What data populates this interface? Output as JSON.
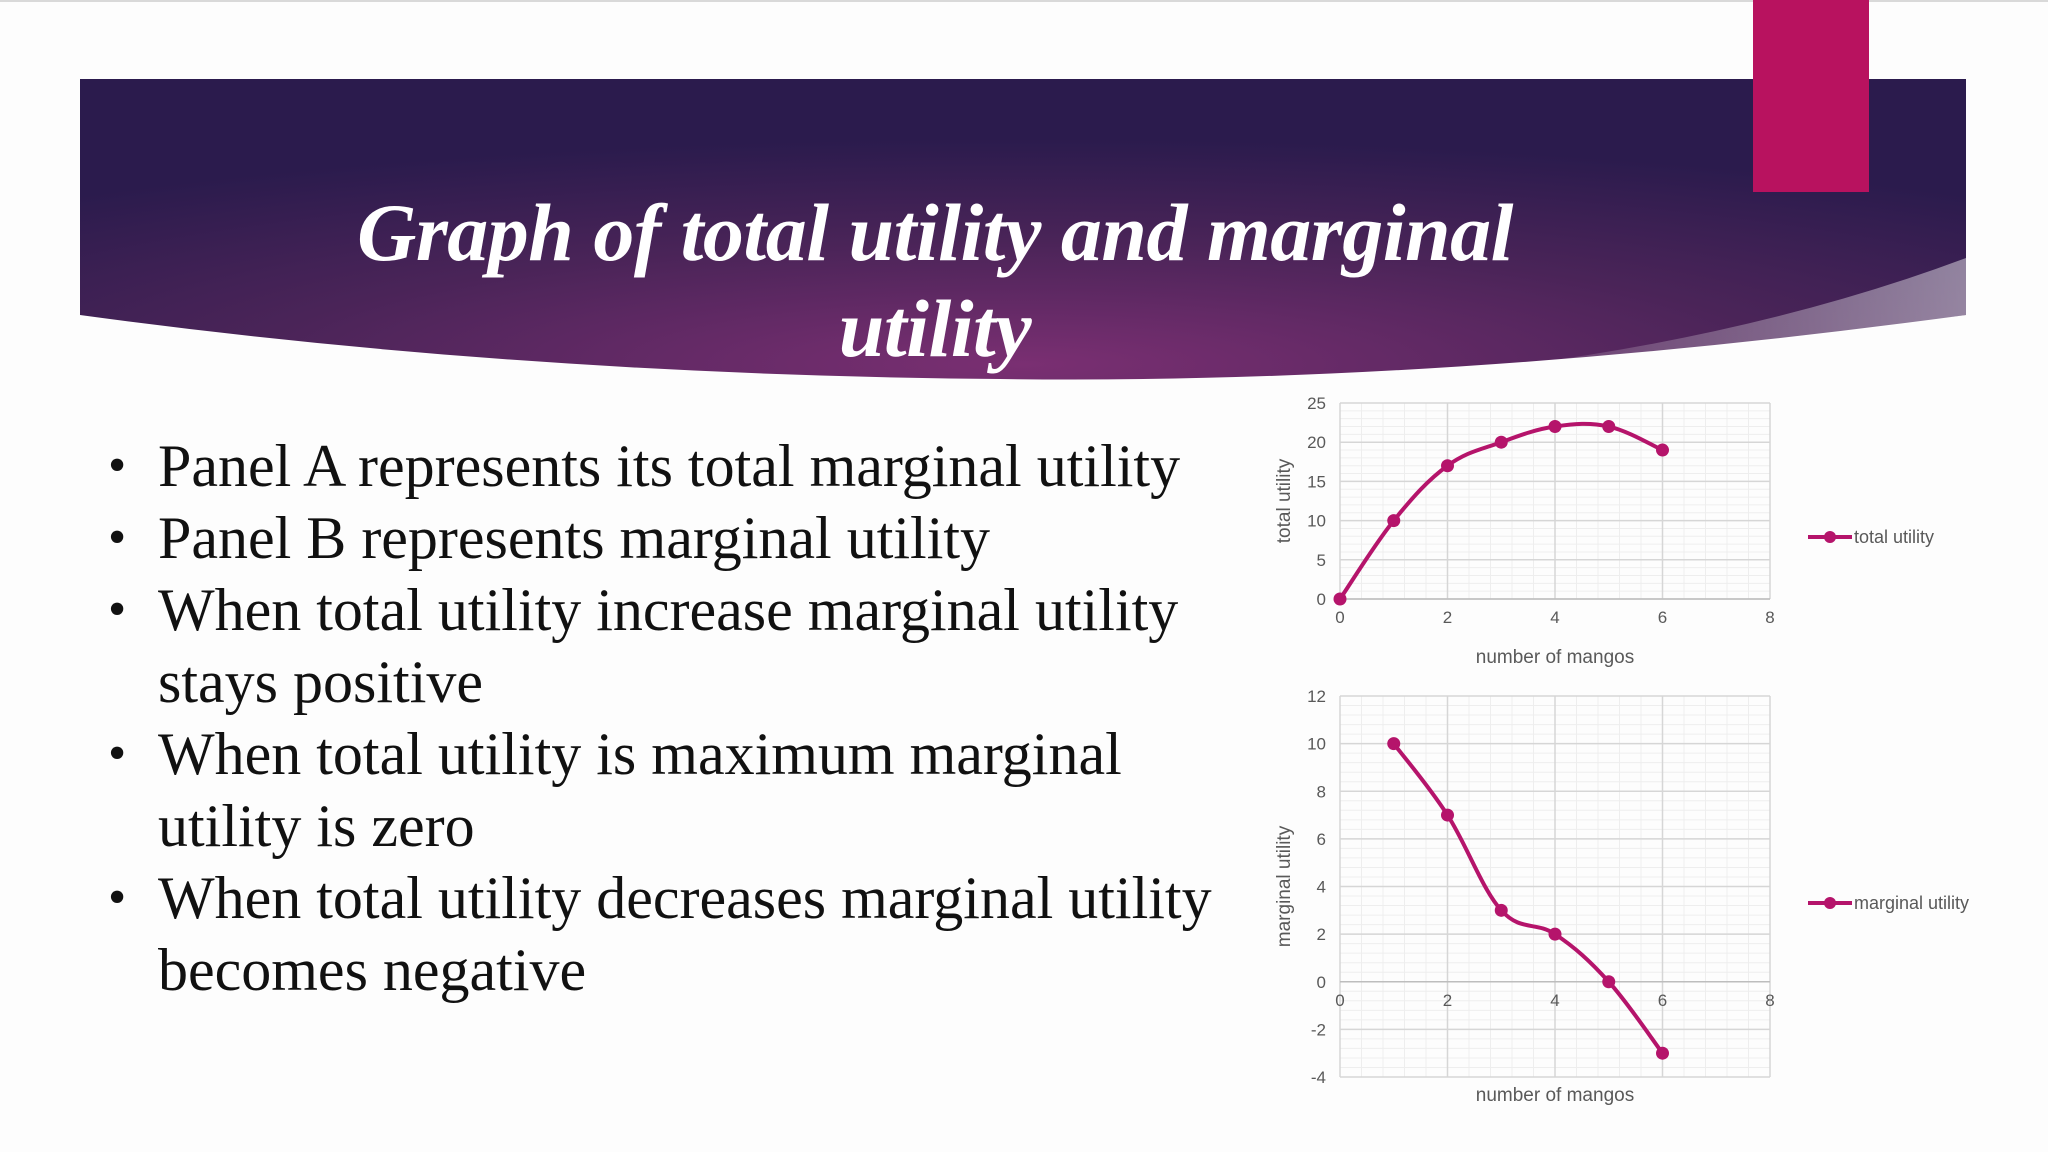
{
  "slide": {
    "title_lines": [
      "Graph of total utility and marginal",
      "utility"
    ],
    "bullets": [
      "Panel A represents its total marginal utility",
      "Panel B represents marginal utility",
      "When total utility increase marginal utility stays positive",
      "When total utility is maximum marginal utility is zero",
      "When total utility decreases marginal utility becomes negative"
    ]
  },
  "colors": {
    "accent": "#b8125f",
    "banner_dark": "#2b1b4d",
    "banner_mid": "#6a2b6e",
    "series": "#b5146b"
  },
  "chart_data": [
    {
      "type": "line",
      "panel": "A",
      "x": [
        0,
        1,
        2,
        3,
        4,
        5,
        6
      ],
      "series": [
        {
          "name": "total utility",
          "values": [
            0,
            10,
            17,
            20,
            22,
            22,
            19
          ]
        }
      ],
      "xlabel": "number of mangos",
      "ylabel": "total utility",
      "xlim": [
        0,
        8
      ],
      "ylim": [
        0,
        25
      ],
      "xticks": [
        0,
        2,
        4,
        6,
        8
      ],
      "yticks": [
        0,
        5,
        10,
        15,
        20,
        25
      ],
      "grid": true,
      "smooth": true,
      "legend": "right"
    },
    {
      "type": "line",
      "panel": "B",
      "x": [
        1,
        2,
        3,
        4,
        5,
        6
      ],
      "series": [
        {
          "name": "marginal utility",
          "values": [
            10,
            7,
            3,
            2,
            0,
            -3
          ]
        }
      ],
      "xlabel": "number of mangos",
      "ylabel": "marginal utility",
      "xlim": [
        0,
        8
      ],
      "ylim": [
        -4,
        12
      ],
      "xticks": [
        0,
        2,
        4,
        6,
        8
      ],
      "yticks": [
        -4,
        -2,
        0,
        2,
        4,
        6,
        8,
        10,
        12
      ],
      "grid": true,
      "smooth": true,
      "legend": "right"
    }
  ]
}
